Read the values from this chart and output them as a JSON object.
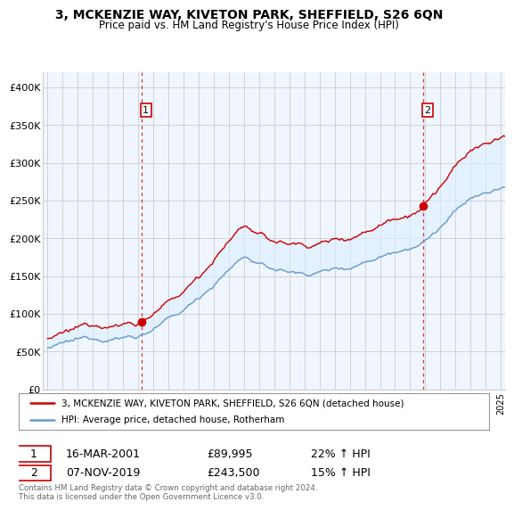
{
  "title": "3, MCKENZIE WAY, KIVETON PARK, SHEFFIELD, S26 6QN",
  "subtitle": "Price paid vs. HM Land Registry's House Price Index (HPI)",
  "ylabel_ticks": [
    "£0",
    "£50K",
    "£100K",
    "£150K",
    "£200K",
    "£250K",
    "£300K",
    "£350K",
    "£400K"
  ],
  "ytick_vals": [
    0,
    50000,
    100000,
    150000,
    200000,
    250000,
    300000,
    350000,
    400000
  ],
  "ylim": [
    0,
    420000
  ],
  "xlim_start": 1994.7,
  "xlim_end": 2025.3,
  "transaction1_date": 2001.21,
  "transaction1_price": 89995,
  "transaction2_date": 2019.85,
  "transaction2_price": 243500,
  "legend_line1": "3, MCKENZIE WAY, KIVETON PARK, SHEFFIELD, S26 6QN (detached house)",
  "legend_line2": "HPI: Average price, detached house, Rotherham",
  "note1_label": "1",
  "note1_date": "16-MAR-2001",
  "note1_price": "£89,995",
  "note1_hpi": "22% ↑ HPI",
  "note2_label": "2",
  "note2_date": "07-NOV-2019",
  "note2_price": "£243,500",
  "note2_hpi": "15% ↑ HPI",
  "footer": "Contains HM Land Registry data © Crown copyright and database right 2024.\nThis data is licensed under the Open Government Licence v3.0.",
  "line_color_property": "#cc0000",
  "line_color_hpi": "#6699cc",
  "fill_color_hpi": "#ddeeff",
  "vline_color": "#dd3333",
  "grid_color": "#cccccc",
  "background_color": "#ffffff",
  "chart_bg_color": "#f0f6ff"
}
